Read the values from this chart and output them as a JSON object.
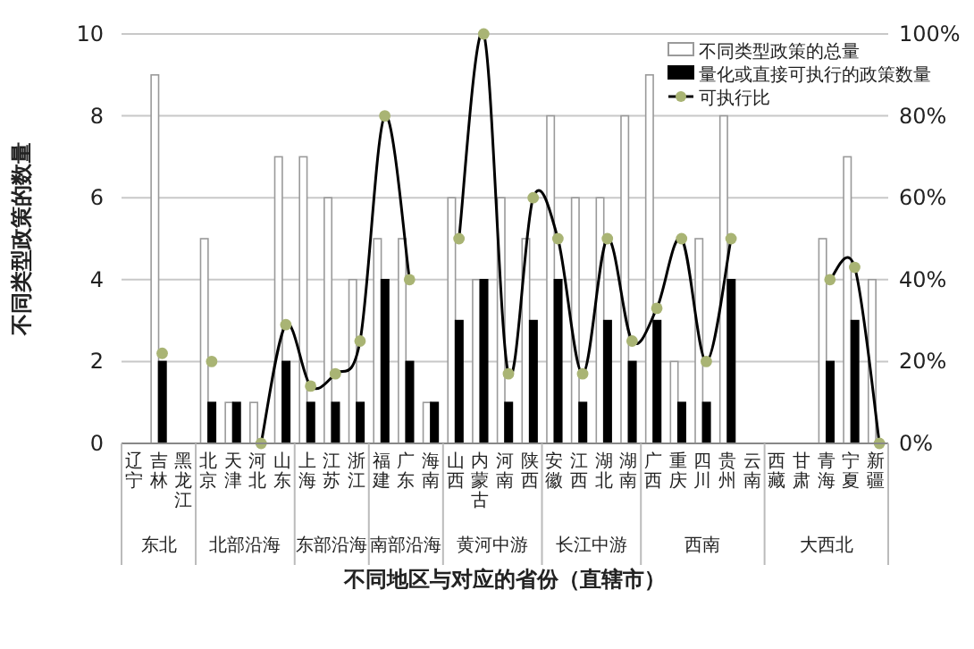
{
  "chart_data": {
    "type": "bar",
    "categories": [
      "辽宁",
      "吉林",
      "黑龙江",
      "北京",
      "天津",
      "河北",
      "山东",
      "上海",
      "江苏",
      "浙江",
      "福建",
      "广东",
      "海南",
      "山西",
      "内蒙古",
      "河南",
      "陕西",
      "安徽",
      "江西",
      "湖北",
      "湖南",
      "广西",
      "重庆",
      "四川",
      "贵州",
      "云南",
      "西藏",
      "甘肃",
      "青海",
      "宁夏",
      "新疆"
    ],
    "series": [
      {
        "name": "不同类型政策的总量",
        "color": "#ffffff",
        "values": [
          null,
          9,
          null,
          5,
          1,
          1,
          7,
          7,
          6,
          4,
          5,
          5,
          1,
          6,
          4,
          6,
          5,
          8,
          6,
          6,
          8,
          9,
          2,
          5,
          8,
          null,
          null,
          null,
          5,
          7,
          4
        ]
      },
      {
        "name": "量化或直接可执行的政策数量",
        "color": "#000000",
        "values": [
          null,
          2,
          null,
          1,
          1,
          0,
          2,
          1,
          1,
          1,
          4,
          2,
          1,
          3,
          4,
          1,
          3,
          4,
          1,
          3,
          2,
          3,
          1,
          1,
          4,
          null,
          null,
          null,
          2,
          3,
          0
        ]
      },
      {
        "name": "可执行比",
        "type": "line",
        "axis": "y2",
        "marker": "circle",
        "color": "#a9b474",
        "values": [
          null,
          22,
          null,
          20,
          null,
          0,
          29,
          14,
          17,
          25,
          80,
          40,
          null,
          50,
          100,
          17,
          60,
          50,
          17,
          50,
          25,
          33,
          50,
          20,
          50,
          null,
          null,
          null,
          40,
          43,
          0
        ]
      }
    ],
    "xlabel": "不同地区与对应的省份（直辖市）",
    "ylabel": "不同类型政策的数量",
    "ylim": [
      0,
      10
    ],
    "yticks": [
      0,
      2,
      4,
      6,
      8,
      10
    ],
    "y2lim": [
      0,
      100
    ],
    "y2ticks": [
      {
        "value": 0,
        "label": "0%"
      },
      {
        "value": 20,
        "label": "20%"
      },
      {
        "value": 40,
        "label": "40%"
      },
      {
        "value": 60,
        "label": "60%"
      },
      {
        "value": 80,
        "label": "80%"
      },
      {
        "value": 100,
        "label": "100%"
      }
    ],
    "grid": "y",
    "legend": "top right",
    "annotations": [
      "东北",
      "北部沿海",
      "东部沿海",
      "南部沿海",
      "黄河中游",
      "长江中游",
      "西南",
      "大西北"
    ]
  }
}
